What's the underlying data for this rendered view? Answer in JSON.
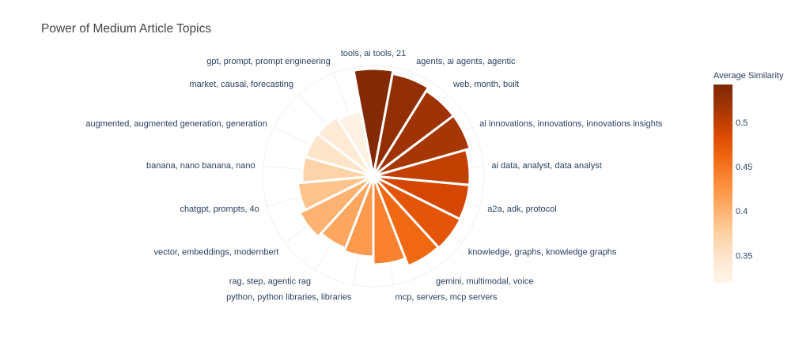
{
  "chart_data": {
    "type": "barpolar",
    "title": "Power of Medium Article Topics",
    "direction": "clockwise",
    "rotation_start": "top",
    "categories": [
      "tools, ai tools, 21",
      "agents, ai agents, agentic",
      "web, month, built",
      "ai innovations, innovations, innovations insights",
      "ai data, analyst, data analyst",
      "a2a, adk, protocol",
      "knowledge, graphs, knowledge graphs",
      "gemini, multimodal, voice",
      "mcp, servers, mcp servers",
      "python, python libraries, libraries",
      "rag, step, agentic rag",
      "vector, embeddings, modernbert",
      "chatgpt, prompts, 4o",
      "banana, nano banana, nano",
      "augmented, augmented generation, generation",
      "market, causal, forecasting",
      "gpt, prompt, prompt engineering"
    ],
    "values": [
      136,
      132,
      127,
      127,
      122,
      122,
      123,
      122,
      112,
      102,
      98,
      104,
      96,
      90,
      89,
      88,
      84
    ],
    "value_note": "relative radial power (radial axis not labeled)",
    "radial_range": [
      0,
      140
    ],
    "color_values": [
      0.54,
      0.53,
      0.52,
      0.515,
      0.5,
      0.49,
      0.475,
      0.46,
      0.44,
      0.42,
      0.41,
      0.4,
      0.385,
      0.37,
      0.35,
      0.34,
      0.325
    ],
    "colorbar": {
      "title": "Average Similarity",
      "ticks": [
        0.35,
        0.4,
        0.45,
        0.5
      ],
      "tick_labels": [
        "0.35",
        "0.4",
        "0.45",
        "0.5"
      ],
      "range": [
        0.319,
        0.543
      ]
    },
    "colorscale": [
      "#fff5eb",
      "#fee6ce",
      "#fdd0a2",
      "#fdae6b",
      "#fd8d3c",
      "#f16913",
      "#d94801",
      "#a63603",
      "#7f2704"
    ],
    "grid": true,
    "legend": "none"
  }
}
